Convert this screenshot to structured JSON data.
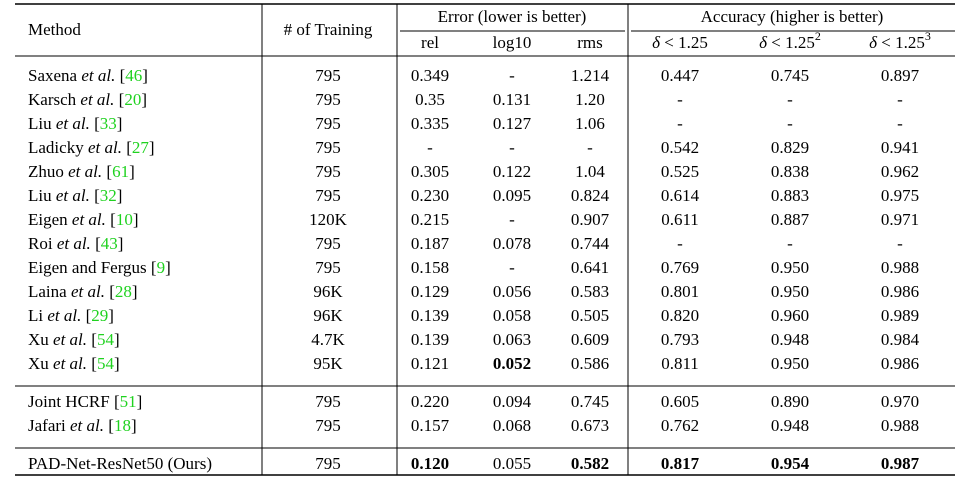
{
  "header": {
    "method": "Method",
    "training": "# of Training",
    "error": "Error (lower is better)",
    "accuracy": "Accuracy (higher is better)",
    "error_cols": [
      "rel",
      "log10",
      "rms"
    ],
    "accuracy_cols": [
      [
        {
          "text": "δ",
          "style": "italic"
        },
        {
          "text": " < 1.25"
        }
      ],
      [
        {
          "text": "δ",
          "style": "italic"
        },
        {
          "text": " < 1.25"
        },
        {
          "text": "2",
          "style": "sup"
        }
      ],
      [
        {
          "text": "δ",
          "style": "italic"
        },
        {
          "text": " < 1.25"
        },
        {
          "text": "3",
          "style": "sup"
        }
      ]
    ]
  },
  "groups": [
    {
      "rows": [
        {
          "method": [
            {
              "text": "Saxena "
            },
            {
              "text": "et al.",
              "style": "italic"
            },
            {
              "text": " ["
            },
            {
              "text": "46",
              "style": "cite"
            },
            {
              "text": "]"
            }
          ],
          "training": "795",
          "values": [
            "0.349",
            "-",
            "1.214",
            "0.447",
            "0.745",
            "0.897"
          ],
          "bold": []
        },
        {
          "method": [
            {
              "text": "Karsch "
            },
            {
              "text": "et al.",
              "style": "italic"
            },
            {
              "text": " ["
            },
            {
              "text": "20",
              "style": "cite"
            },
            {
              "text": "]"
            }
          ],
          "training": "795",
          "values": [
            "0.35",
            "0.131",
            "1.20",
            "-",
            "-",
            "-"
          ],
          "bold": []
        },
        {
          "method": [
            {
              "text": "Liu "
            },
            {
              "text": "et al.",
              "style": "italic"
            },
            {
              "text": " ["
            },
            {
              "text": "33",
              "style": "cite"
            },
            {
              "text": "]"
            }
          ],
          "training": "795",
          "values": [
            "0.335",
            "0.127",
            "1.06",
            "-",
            "-",
            "-"
          ],
          "bold": []
        },
        {
          "method": [
            {
              "text": "Ladicky "
            },
            {
              "text": "et al.",
              "style": "italic"
            },
            {
              "text": " ["
            },
            {
              "text": "27",
              "style": "cite"
            },
            {
              "text": "]"
            }
          ],
          "training": "795",
          "values": [
            "-",
            "-",
            "-",
            "0.542",
            "0.829",
            "0.941"
          ],
          "bold": []
        },
        {
          "method": [
            {
              "text": "Zhuo "
            },
            {
              "text": "et al.",
              "style": "italic"
            },
            {
              "text": " ["
            },
            {
              "text": "61",
              "style": "cite"
            },
            {
              "text": "]"
            }
          ],
          "training": "795",
          "values": [
            "0.305",
            "0.122",
            "1.04",
            "0.525",
            "0.838",
            "0.962"
          ],
          "bold": []
        },
        {
          "method": [
            {
              "text": "Liu "
            },
            {
              "text": "et al.",
              "style": "italic"
            },
            {
              "text": " ["
            },
            {
              "text": "32",
              "style": "cite"
            },
            {
              "text": "]"
            }
          ],
          "training": "795",
          "values": [
            "0.230",
            "0.095",
            "0.824",
            "0.614",
            "0.883",
            "0.975"
          ],
          "bold": []
        },
        {
          "method": [
            {
              "text": "Eigen "
            },
            {
              "text": "et al.",
              "style": "italic"
            },
            {
              "text": " ["
            },
            {
              "text": "10",
              "style": "cite"
            },
            {
              "text": "]"
            }
          ],
          "training": "120K",
          "values": [
            "0.215",
            "-",
            "0.907",
            "0.611",
            "0.887",
            "0.971"
          ],
          "bold": []
        },
        {
          "method": [
            {
              "text": "Roi "
            },
            {
              "text": "et al.",
              "style": "italic"
            },
            {
              "text": " ["
            },
            {
              "text": "43",
              "style": "cite"
            },
            {
              "text": "]"
            }
          ],
          "training": "795",
          "values": [
            "0.187",
            "0.078",
            "0.744",
            "-",
            "-",
            "-"
          ],
          "bold": []
        },
        {
          "method": [
            {
              "text": "Eigen and Fergus ["
            },
            {
              "text": "9",
              "style": "cite"
            },
            {
              "text": "]"
            }
          ],
          "training": "795",
          "values": [
            "0.158",
            "-",
            "0.641",
            "0.769",
            "0.950",
            "0.988"
          ],
          "bold": []
        },
        {
          "method": [
            {
              "text": "Laina "
            },
            {
              "text": "et al.",
              "style": "italic"
            },
            {
              "text": " ["
            },
            {
              "text": "28",
              "style": "cite"
            },
            {
              "text": "]"
            }
          ],
          "training": "96K",
          "values": [
            "0.129",
            "0.056",
            "0.583",
            "0.801",
            "0.950",
            "0.986"
          ],
          "bold": []
        },
        {
          "method": [
            {
              "text": "Li "
            },
            {
              "text": "et al.",
              "style": "italic"
            },
            {
              "text": " ["
            },
            {
              "text": "29",
              "style": "cite"
            },
            {
              "text": "]"
            }
          ],
          "training": "96K",
          "values": [
            "0.139",
            "0.058",
            "0.505",
            "0.820",
            "0.960",
            "0.989"
          ],
          "bold": []
        },
        {
          "method": [
            {
              "text": "Xu "
            },
            {
              "text": "et al.",
              "style": "italic"
            },
            {
              "text": " ["
            },
            {
              "text": "54",
              "style": "cite"
            },
            {
              "text": "]"
            }
          ],
          "training": "4.7K",
          "values": [
            "0.139",
            "0.063",
            "0.609",
            "0.793",
            "0.948",
            "0.984"
          ],
          "bold": []
        },
        {
          "method": [
            {
              "text": "Xu "
            },
            {
              "text": "et al.",
              "style": "italic"
            },
            {
              "text": " ["
            },
            {
              "text": "54",
              "style": "cite"
            },
            {
              "text": "]"
            }
          ],
          "training": "95K",
          "values": [
            "0.121",
            "0.052",
            "0.586",
            "0.811",
            "0.950",
            "0.986"
          ],
          "bold": [
            1
          ]
        }
      ]
    },
    {
      "rows": [
        {
          "method": [
            {
              "text": "Joint HCRF ["
            },
            {
              "text": "51",
              "style": "cite"
            },
            {
              "text": "]"
            }
          ],
          "training": "795",
          "values": [
            "0.220",
            "0.094",
            "0.745",
            "0.605",
            "0.890",
            "0.970"
          ],
          "bold": []
        },
        {
          "method": [
            {
              "text": "Jafari "
            },
            {
              "text": "et al.",
              "style": "italic"
            },
            {
              "text": " ["
            },
            {
              "text": "18",
              "style": "cite"
            },
            {
              "text": "]"
            }
          ],
          "training": "795",
          "values": [
            "0.157",
            "0.068",
            "0.673",
            "0.762",
            "0.948",
            "0.988"
          ],
          "bold": []
        }
      ]
    },
    {
      "rows": [
        {
          "method": [
            {
              "text": "PAD-Net-ResNet50 (Ours)"
            }
          ],
          "training": "795",
          "values": [
            "0.120",
            "0.055",
            "0.582",
            "0.817",
            "0.954",
            "0.987"
          ],
          "bold": [
            0,
            2,
            3,
            4,
            5
          ]
        }
      ]
    }
  ]
}
